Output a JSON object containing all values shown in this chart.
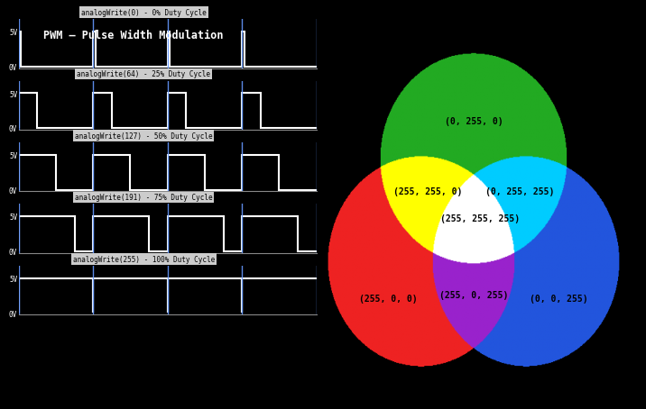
{
  "title": "PWM – Pulse Width Modulation",
  "background_color": "#000000",
  "pwm_signals": [
    {
      "label": "analogWrite(0) - 0% Duty Cycle",
      "duty": 0.0
    },
    {
      "label": "analogWrite(64) - 25% Duty Cycle",
      "duty": 0.25
    },
    {
      "label": "analogWrite(127) - 50% Duty Cycle",
      "duty": 0.5
    },
    {
      "label": "analogWrite(191) - 75% Duty Cycle",
      "duty": 0.75
    },
    {
      "label": "analogWrite(255) - 100% Duty Cycle",
      "duty": 1.0
    }
  ],
  "signal_color": "#ffffff",
  "signal_highlight_color": "#6699ff",
  "label_bg_color": "#cccccc",
  "ylabel_5v": "5V",
  "ylabel_0v": "0V",
  "venn": {
    "green_color": "#22aa22",
    "red_color": "#ee2222",
    "blue_color": "#2255dd",
    "yellow_color": "#ffff00",
    "cyan_color": "#00ccff",
    "magenta_color": "#9922cc",
    "white_color": "#ffffff",
    "labels": {
      "green": "(0, 255, 0)",
      "red": "(255, 0, 0)",
      "blue": "(0, 0, 255)",
      "yellow": "(255, 255, 0)",
      "cyan": "(0, 255, 255)",
      "magenta": "(255, 0, 255)",
      "white": "(255, 255, 255)"
    }
  }
}
